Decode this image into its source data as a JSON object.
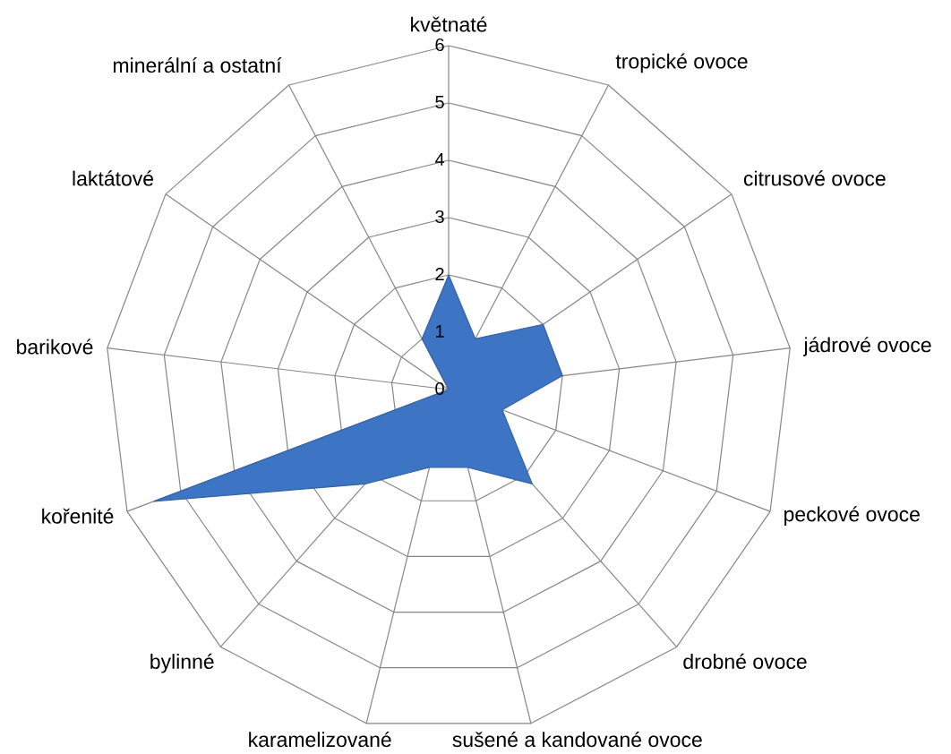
{
  "chart_data": {
    "type": "radar",
    "categories": [
      "květnaté",
      "tropické ovoce",
      "citrusové ovoce",
      "jádrové ovoce",
      "peckové ovoce",
      "drobné ovoce",
      "sušené a kandované ovoce",
      "karamelizované",
      "bylinné",
      "kořenité",
      "barikové",
      "laktátové",
      "minerální a ostatní"
    ],
    "series": [
      {
        "color": "#3d74c3",
        "values": [
          2,
          1,
          2,
          2,
          1,
          2.2,
          1.4,
          1.4,
          2.2,
          5.5,
          0,
          0,
          1
        ]
      }
    ],
    "ylim": [
      0,
      6
    ],
    "yticks": [
      0,
      1,
      2,
      3,
      4,
      5,
      6
    ],
    "grid": true
  }
}
